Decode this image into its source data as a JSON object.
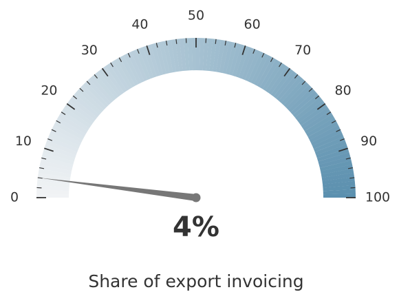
{
  "chart_data": {
    "type": "gauge",
    "title": "Share of export invoicing",
    "value": 4,
    "value_label": "4%",
    "ylim": [
      0,
      100
    ],
    "yticks": [
      0,
      10,
      20,
      30,
      40,
      50,
      60,
      70,
      80,
      90,
      100
    ],
    "color_start": "#f1f3f5",
    "color_end": "#5a8fae",
    "needle_color": "#777777"
  }
}
